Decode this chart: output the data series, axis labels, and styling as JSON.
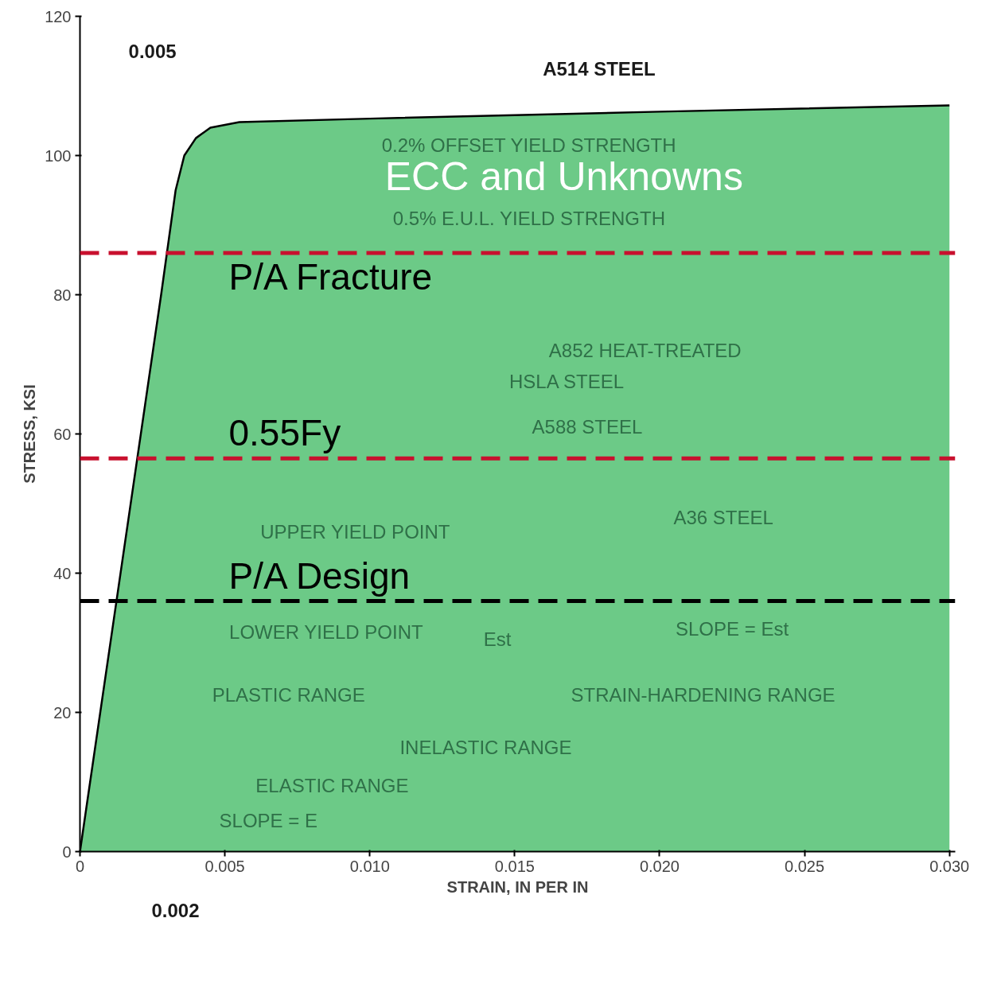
{
  "chart_data": {
    "type": "area",
    "xlabel": "STRAIN, IN PER IN",
    "ylabel": "STRESS, KSI",
    "x": [
      0,
      0.0028,
      0.0033,
      0.0036,
      0.004,
      0.0045,
      0.0055,
      0.01,
      0.02,
      0.03
    ],
    "series": [
      {
        "color": "#5cc47a",
        "values": [
          0,
          80,
          95,
          100,
          102.5,
          104,
          104.8,
          105.3,
          106.3,
          107.2
        ]
      }
    ],
    "xlim": [
      0,
      0.0302
    ],
    "ylim": [
      0,
      120
    ],
    "xticks": [
      0,
      0.005,
      {
        "value": 0.01,
        "label": "0.010"
      },
      0.015,
      {
        "value": 0.02,
        "label": "0.020"
      },
      0.025,
      {
        "value": 0.03,
        "label": "0.030"
      }
    ],
    "yticks": [
      0,
      20,
      40,
      60,
      80,
      100,
      120
    ],
    "ref_lines": [
      {
        "axis": "y",
        "value": 86,
        "label": "P/A Fracture",
        "color": "#c8102e",
        "line_style": "dashed"
      },
      {
        "axis": "y",
        "value": 56.5,
        "label": "0.55Fy",
        "color": "#c8102e",
        "line_style": "dashed"
      },
      {
        "axis": "y",
        "value": 36,
        "label": "P/A Design",
        "color": "#000000",
        "line_style": "dashed"
      }
    ],
    "annotations": [
      {
        "text": "A514 STEEL",
        "x": 0.0204,
        "y": 106.3
      },
      "0.005",
      "0.002",
      "ECC and Unknowns",
      "0.2% OFFSET YIELD STRENGTH",
      "0.5% E.U.L. YIELD STRENGTH",
      "A852 HEAT-TREATED",
      "HSLA  STEEL",
      "A588 STEEL",
      "A36 STEEL",
      "UPPER YIELD POINT",
      "LOWER YIELD POINT",
      "Est",
      "SLOPE = Est",
      "PLASTIC RANGE",
      "STRAIN-HARDENING RANGE",
      "INELASTIC RANGE",
      "ELASTIC RANGE",
      "SLOPE = E"
    ]
  }
}
